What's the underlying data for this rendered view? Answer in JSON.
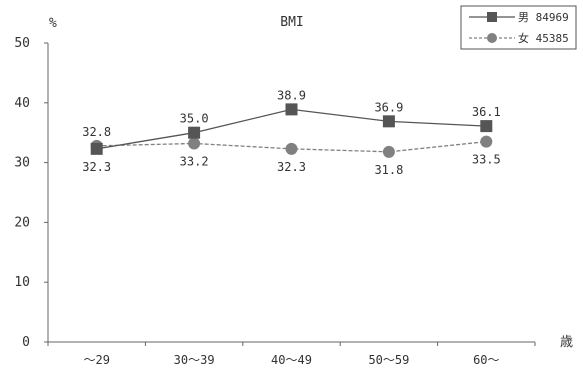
{
  "chart_data": {
    "type": "line",
    "title": "BMI",
    "ylabel": "%",
    "xlabel": "歳",
    "categories": [
      "～29",
      "30～39",
      "40～49",
      "50～59",
      "60～"
    ],
    "ylim": [
      0,
      50
    ],
    "yticks": [
      0,
      10,
      20,
      30,
      40,
      50
    ],
    "grid": false,
    "legend_position": "top-right",
    "series": [
      {
        "name": "男 84969",
        "values": [
          32.3,
          35.0,
          38.9,
          36.9,
          36.1
        ],
        "labels": [
          "32.3",
          "35.0",
          "38.9",
          "36.9",
          "36.1"
        ],
        "marker": "square",
        "line": "solid",
        "color": "#555555"
      },
      {
        "name": "女 45385",
        "values": [
          32.8,
          33.2,
          32.3,
          31.8,
          33.5
        ],
        "labels": [
          "32.8",
          "33.2",
          "32.3",
          "31.8",
          "33.5"
        ],
        "marker": "circle",
        "line": "dashed",
        "color": "#808080"
      }
    ]
  }
}
